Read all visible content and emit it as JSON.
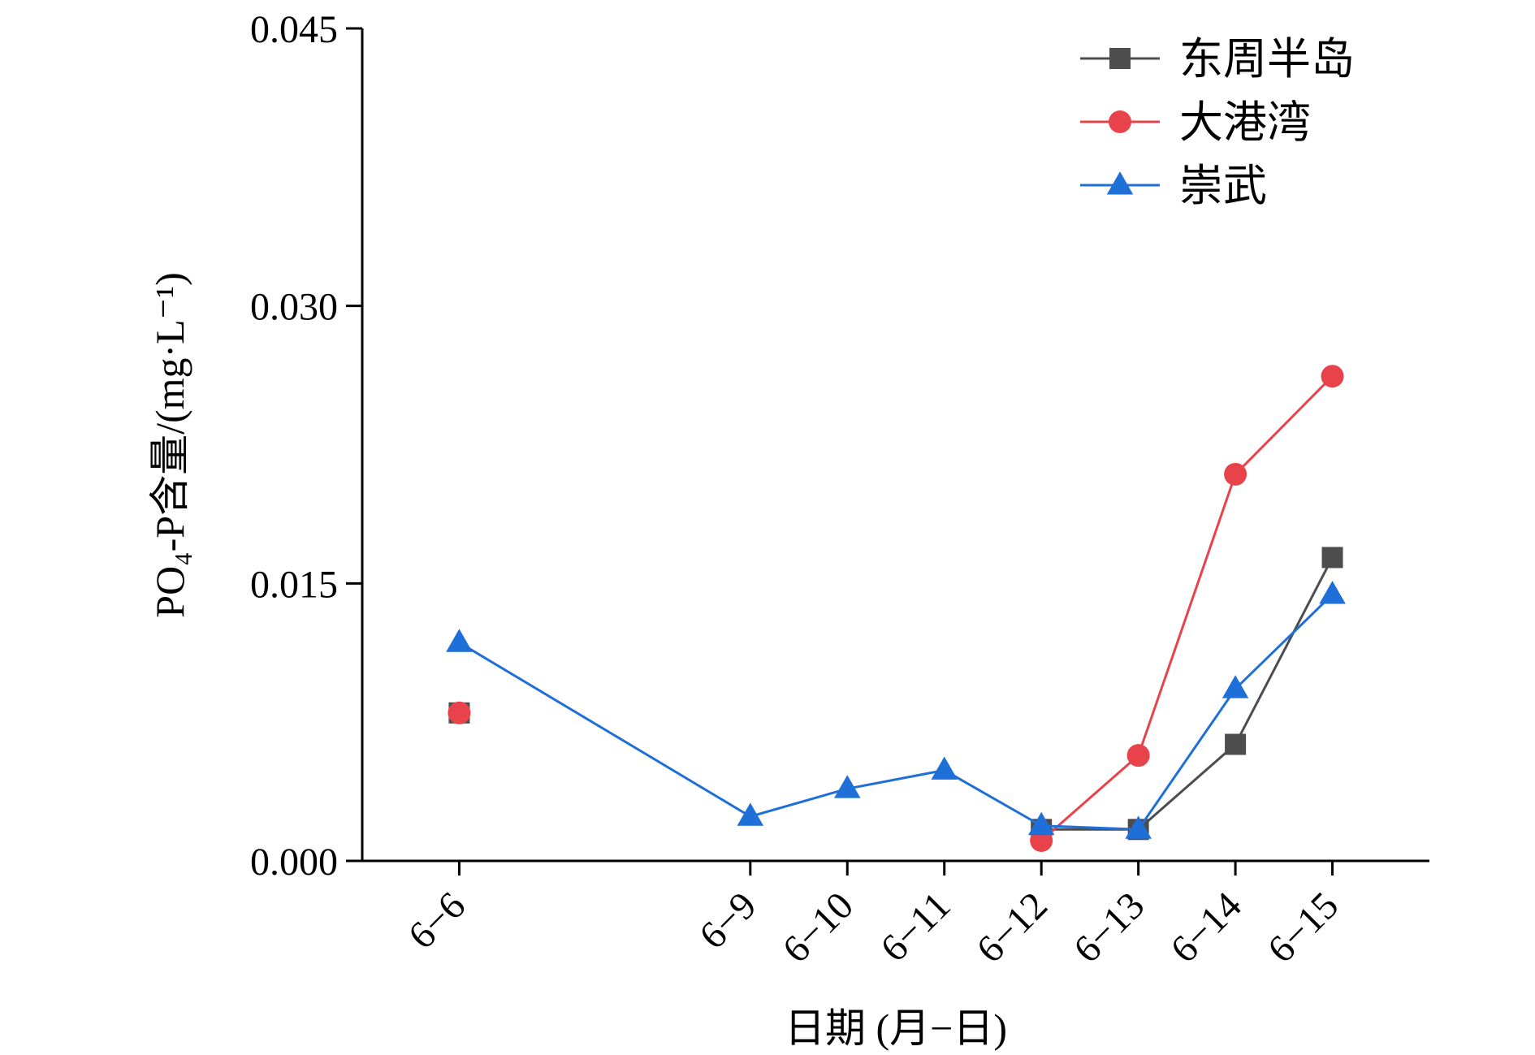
{
  "chart_data": {
    "type": "line",
    "x": [
      "6-6",
      "6-9",
      "6-10",
      "6-11",
      "6-12",
      "6-13",
      "6-14",
      "6-15"
    ],
    "x_positions": [
      6,
      9,
      10,
      11,
      12,
      13,
      14,
      15
    ],
    "xlabel": "日期 (月−日)",
    "ylabel": "PO₄-P含量/(mg·L⁻¹)",
    "ylim": [
      0,
      0.045
    ],
    "yticks": [
      "0.000",
      "0.015",
      "0.030",
      "0.045"
    ],
    "ytick_values": [
      0,
      0.015,
      0.03,
      0.045
    ],
    "xticks": [
      "6−6",
      "6−9",
      "6−10",
      "6−11",
      "6−12",
      "6−13",
      "6−14",
      "6−15"
    ],
    "legend_position": "top-right",
    "grid": false,
    "series": [
      {
        "name": "东周半岛",
        "color": "#4d4d4d",
        "marker": "square",
        "values": [
          0.008,
          null,
          null,
          null,
          0.0017,
          0.0017,
          0.0063,
          0.0164
        ]
      },
      {
        "name": "大港湾",
        "color": "#e8434a",
        "marker": "circle",
        "values": [
          0.008,
          null,
          null,
          null,
          0.0011,
          0.0057,
          0.0209,
          0.0262
        ]
      },
      {
        "name": "崇武",
        "color": "#1f6fd8",
        "marker": "triangle",
        "values": [
          0.0118,
          0.0024,
          0.0039,
          0.0049,
          0.0019,
          0.0017,
          0.0093,
          0.0144
        ]
      }
    ]
  }
}
